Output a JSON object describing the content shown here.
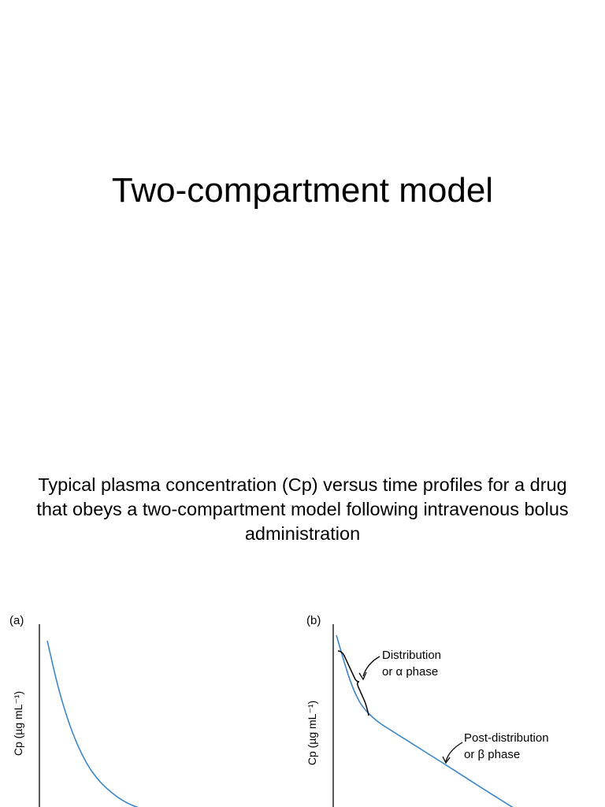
{
  "slide": {
    "title": "Two-compartment model",
    "caption": "Typical plasma concentration (Cp) versus time profiles for a drug that obeys a two-compartment model following intravenous bolus administration"
  },
  "colors": {
    "curve": "#3a86c8",
    "axis": "#000000"
  },
  "chart_data": [
    {
      "type": "line",
      "panel_label": "(a)",
      "ylabel": "Cp (µg mL⁻¹)",
      "scale": "linear",
      "ticks": "none",
      "series": [
        {
          "x": [
            0,
            1,
            2,
            3,
            4,
            5,
            6,
            7,
            8,
            9,
            10,
            11,
            12,
            14,
            16,
            18
          ],
          "values": [
            100,
            78,
            61,
            48,
            38,
            31,
            26,
            22,
            19,
            17,
            15.5,
            14.2,
            13,
            11,
            9.2,
            7.6
          ]
        }
      ]
    },
    {
      "type": "line",
      "panel_label": "(b)",
      "ylabel": "Cp (µg mL⁻¹)",
      "scale": "log",
      "ticks": "none",
      "series": [
        {
          "x": [
            0,
            0.5,
            1,
            1.5,
            2,
            3,
            4,
            6,
            8,
            10,
            12,
            14
          ],
          "values": [
            100,
            78,
            62,
            52,
            46,
            40,
            36.5,
            30.5,
            25.5,
            21.2,
            17.7,
            14.8
          ]
        }
      ],
      "annotations": [
        {
          "text_line1": "Distribution",
          "text_line2": "or α phase"
        },
        {
          "text_line1": "Post-distribution",
          "text_line2": "or β phase"
        }
      ]
    }
  ]
}
